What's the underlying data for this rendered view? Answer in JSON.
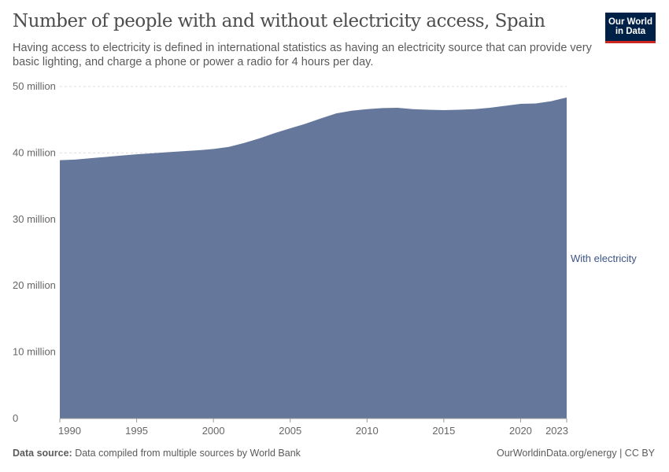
{
  "header": {
    "title": "Number of people with and without electricity access, Spain",
    "subtitle": "Having access to electricity is defined in international statistics as having an electricity source that can provide very basic lighting, and charge a phone or power a radio for 4 hours per day."
  },
  "logo": {
    "line1": "Our World",
    "line2": "in Data"
  },
  "footer": {
    "source_label": "Data source:",
    "source_text": " Data compiled from multiple sources by World Bank",
    "credit": "OurWorldinData.org/energy | CC BY"
  },
  "colors": {
    "area": "#65789c",
    "label": "#3c5487",
    "brand": "#002147",
    "accent": "#ce261e"
  },
  "chart_data": {
    "type": "area",
    "title": "Number of people with and without electricity access, Spain",
    "x": [
      1990,
      1991,
      1992,
      1993,
      1994,
      1995,
      1996,
      1997,
      1998,
      1999,
      2000,
      2001,
      2002,
      2003,
      2004,
      2005,
      2006,
      2007,
      2008,
      2009,
      2010,
      2011,
      2012,
      2013,
      2014,
      2015,
      2016,
      2017,
      2018,
      2019,
      2020,
      2021,
      2022,
      2023
    ],
    "series": [
      {
        "name": "With electricity",
        "values": [
          38.9,
          39.0,
          39.2,
          39.4,
          39.6,
          39.8,
          39.95,
          40.1,
          40.25,
          40.4,
          40.6,
          40.9,
          41.5,
          42.2,
          43.0,
          43.7,
          44.4,
          45.2,
          45.95,
          46.35,
          46.6,
          46.75,
          46.8,
          46.6,
          46.5,
          46.45,
          46.5,
          46.6,
          46.8,
          47.1,
          47.4,
          47.45,
          47.8,
          48.35
        ]
      }
    ],
    "unit": "million",
    "ylim": [
      0,
      50
    ],
    "yticks": [
      {
        "v": 0,
        "label": "0"
      },
      {
        "v": 10,
        "label": "10 million"
      },
      {
        "v": 20,
        "label": "20 million"
      },
      {
        "v": 30,
        "label": "30 million"
      },
      {
        "v": 40,
        "label": "40 million"
      },
      {
        "v": 50,
        "label": "50 million"
      }
    ],
    "xticks": [
      "1990",
      "1995",
      "2000",
      "2005",
      "2010",
      "2015",
      "2020",
      "2023"
    ],
    "grid": "horizontal dashed",
    "legend": "right (inline label)"
  }
}
